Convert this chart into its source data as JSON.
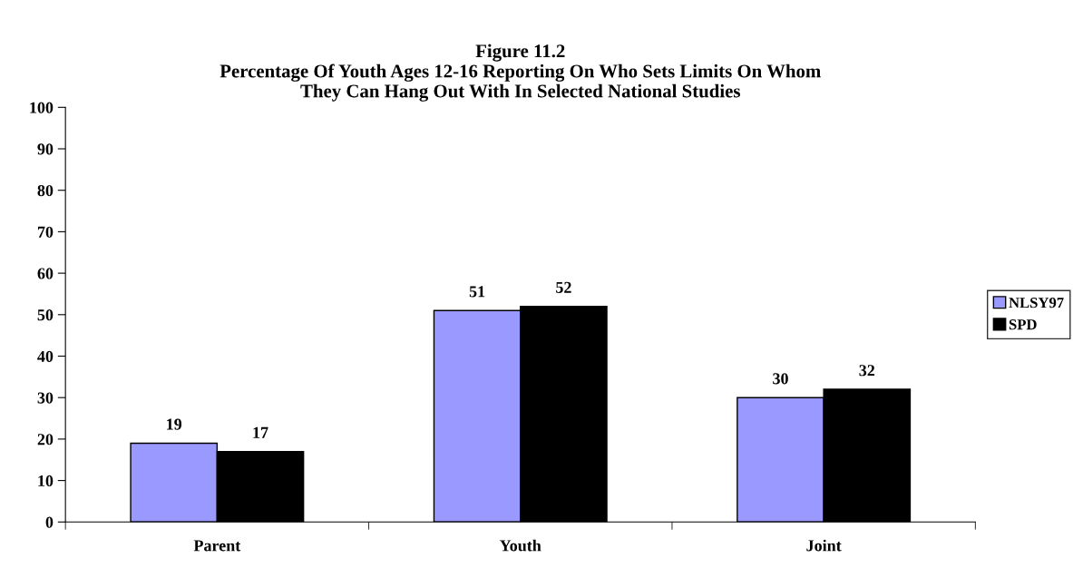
{
  "chart_data": {
    "type": "bar",
    "title": "Figure 11.2\nPercentage Of Youth Ages 12-16 Reporting On Who Sets Limits On Whom\nThey Can Hang Out With In Selected National Studies",
    "categories": [
      "Parent",
      "Youth",
      "Joint"
    ],
    "series": [
      {
        "name": "NLSY97",
        "color": "#9999ff",
        "values": [
          19,
          51,
          30
        ]
      },
      {
        "name": "SPD",
        "color": "#000000",
        "values": [
          17,
          52,
          32
        ]
      }
    ],
    "ylim": [
      0,
      100
    ],
    "yticks": [
      0,
      10,
      20,
      30,
      40,
      50,
      60,
      70,
      80,
      90,
      100
    ],
    "grid": false,
    "legend": "right",
    "data_labels": true
  }
}
